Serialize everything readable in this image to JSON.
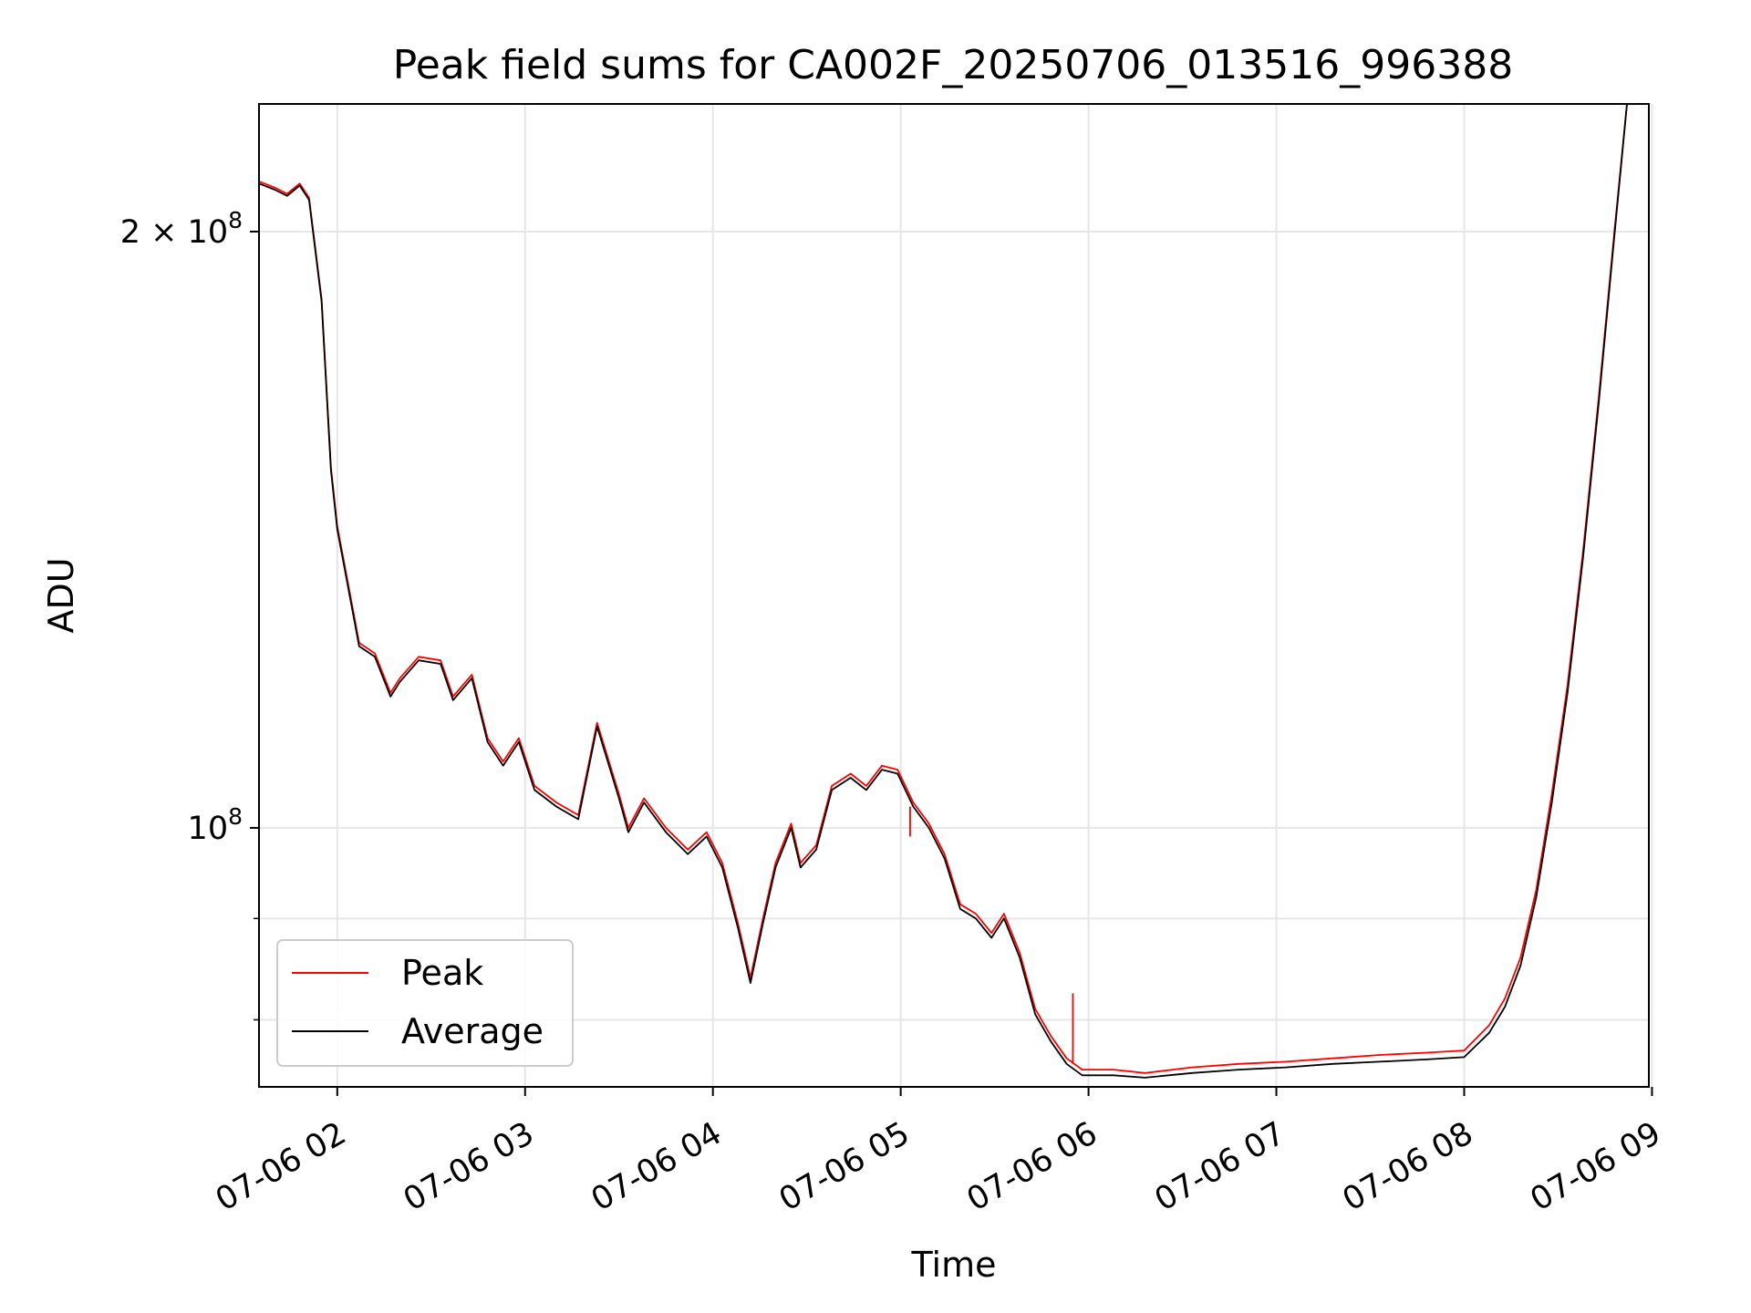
{
  "chart_data": {
    "type": "line",
    "title": "Peak field sums for CA002F_20250706_013516_996388",
    "xlabel": "Time",
    "ylabel": "ADU",
    "y_scale": "log",
    "x_range": [
      "07-06 01:35",
      "07-06 08:59"
    ],
    "ylim": [
      74000000,
      232000000
    ],
    "grid": true,
    "legend_position": "lower-left",
    "x_ticks": [
      "07-06 02",
      "07-06 03",
      "07-06 04",
      "07-06 05",
      "07-06 06",
      "07-06 07",
      "07-06 08",
      "07-06 09"
    ],
    "y_ticks": [
      {
        "value": 200000000,
        "label_base": "2 × 10",
        "label_exp": "8"
      },
      {
        "value": 100000000,
        "label_base": "10",
        "label_exp": "8"
      }
    ],
    "y_minor_ticks": [
      80000000,
      90000000
    ],
    "series": [
      {
        "name": "Peak",
        "color": "#ff0000",
        "points": [
          [
            "07-06 01:35",
            212000000
          ],
          [
            "07-06 01:40",
            210500000
          ],
          [
            "07-06 01:44",
            209000000
          ],
          [
            "07-06 01:48",
            211500000
          ],
          [
            "07-06 01:51",
            208000000
          ],
          [
            "07-06 01:55",
            185000000
          ],
          [
            "07-06 01:58",
            152000000
          ],
          [
            "07-06 02:00",
            142000000
          ],
          [
            "07-06 02:03",
            134000000
          ],
          [
            "07-06 02:07",
            124000000
          ],
          [
            "07-06 02:12",
            122500000
          ],
          [
            "07-06 02:17",
            117000000
          ],
          [
            "07-06 02:20",
            119000000
          ],
          [
            "07-06 02:26",
            122000000
          ],
          [
            "07-06 02:33",
            121500000
          ],
          [
            "07-06 02:37",
            116500000
          ],
          [
            "07-06 02:43",
            119500000
          ],
          [
            "07-06 02:48",
            111000000
          ],
          [
            "07-06 02:53",
            108000000
          ],
          [
            "07-06 02:58",
            111000000
          ],
          [
            "07-06 03:03",
            105000000
          ],
          [
            "07-06 03:10",
            103000000
          ],
          [
            "07-06 03:17",
            101500000
          ],
          [
            "07-06 03:23",
            113000000
          ],
          [
            "07-06 03:30",
            104000000
          ],
          [
            "07-06 03:33",
            100000000
          ],
          [
            "07-06 03:38",
            103500000
          ],
          [
            "07-06 03:45",
            100000000
          ],
          [
            "07-06 03:52",
            97500000
          ],
          [
            "07-06 03:58",
            99500000
          ],
          [
            "07-06 04:03",
            96000000
          ],
          [
            "07-06 04:08",
            89500000
          ],
          [
            "07-06 04:12",
            84000000
          ],
          [
            "07-06 04:16",
            90000000
          ],
          [
            "07-06 04:20",
            96000000
          ],
          [
            "07-06 04:25",
            100500000
          ],
          [
            "07-06 04:28",
            96000000
          ],
          [
            "07-06 04:33",
            98000000
          ],
          [
            "07-06 04:38",
            105000000
          ],
          [
            "07-06 04:44",
            106500000
          ],
          [
            "07-06 04:49",
            105000000
          ],
          [
            "07-06 04:54",
            107500000
          ],
          [
            "07-06 04:59",
            107000000
          ],
          [
            "07-06 05:04",
            103000000
          ],
          [
            "07-06 05:09",
            100500000
          ],
          [
            "07-06 05:14",
            97000000
          ],
          [
            "07-06 05:19",
            91500000
          ],
          [
            "07-06 05:24",
            90500000
          ],
          [
            "07-06 05:29",
            88500000
          ],
          [
            "07-06 05:33",
            90500000
          ],
          [
            "07-06 05:38",
            86500000
          ],
          [
            "07-06 05:43",
            81000000
          ],
          [
            "07-06 05:48",
            78500000
          ],
          [
            "07-06 05:53",
            76500000
          ],
          [
            "07-06 05:58",
            75500000
          ],
          [
            "07-06 06:08",
            75500000
          ],
          [
            "07-06 06:18",
            75200000
          ],
          [
            "07-06 06:33",
            75700000
          ],
          [
            "07-06 06:48",
            76000000
          ],
          [
            "07-06 07:03",
            76200000
          ],
          [
            "07-06 07:18",
            76500000
          ],
          [
            "07-06 07:33",
            76800000
          ],
          [
            "07-06 07:48",
            77000000
          ],
          [
            "07-06 08:00",
            77200000
          ],
          [
            "07-06 08:08",
            79500000
          ],
          [
            "07-06 08:13",
            82000000
          ],
          [
            "07-06 08:18",
            86000000
          ],
          [
            "07-06 08:23",
            93000000
          ],
          [
            "07-06 08:28",
            104000000
          ],
          [
            "07-06 08:33",
            118000000
          ],
          [
            "07-06 08:38",
            138000000
          ],
          [
            "07-06 08:43",
            165000000
          ],
          [
            "07-06 08:48",
            200000000
          ],
          [
            "07-06 08:52",
            232000000
          ],
          [
            "07-06 08:59",
            232000000
          ]
        ]
      },
      {
        "name": "Average",
        "color": "#000000",
        "points": [
          [
            "07-06 01:35",
            211500000
          ],
          [
            "07-06 01:40",
            210000000
          ],
          [
            "07-06 01:44",
            208500000
          ],
          [
            "07-06 01:48",
            211000000
          ],
          [
            "07-06 01:51",
            207500000
          ],
          [
            "07-06 01:55",
            184500000
          ],
          [
            "07-06 01:58",
            151500000
          ],
          [
            "07-06 02:00",
            141500000
          ],
          [
            "07-06 02:03",
            133500000
          ],
          [
            "07-06 02:07",
            123500000
          ],
          [
            "07-06 02:12",
            122000000
          ],
          [
            "07-06 02:17",
            116500000
          ],
          [
            "07-06 02:20",
            118500000
          ],
          [
            "07-06 02:26",
            121500000
          ],
          [
            "07-06 02:33",
            121000000
          ],
          [
            "07-06 02:37",
            116000000
          ],
          [
            "07-06 02:43",
            119000000
          ],
          [
            "07-06 02:48",
            110500000
          ],
          [
            "07-06 02:53",
            107500000
          ],
          [
            "07-06 02:58",
            110500000
          ],
          [
            "07-06 03:03",
            104500000
          ],
          [
            "07-06 03:10",
            102500000
          ],
          [
            "07-06 03:17",
            101000000
          ],
          [
            "07-06 03:23",
            112500000
          ],
          [
            "07-06 03:30",
            103500000
          ],
          [
            "07-06 03:33",
            99500000
          ],
          [
            "07-06 03:38",
            103000000
          ],
          [
            "07-06 03:45",
            99500000
          ],
          [
            "07-06 03:52",
            97000000
          ],
          [
            "07-06 03:58",
            99000000
          ],
          [
            "07-06 04:03",
            95500000
          ],
          [
            "07-06 04:08",
            89000000
          ],
          [
            "07-06 04:12",
            83500000
          ],
          [
            "07-06 04:16",
            89500000
          ],
          [
            "07-06 04:20",
            95500000
          ],
          [
            "07-06 04:25",
            100000000
          ],
          [
            "07-06 04:28",
            95500000
          ],
          [
            "07-06 04:33",
            97500000
          ],
          [
            "07-06 04:38",
            104500000
          ],
          [
            "07-06 04:44",
            106000000
          ],
          [
            "07-06 04:49",
            104500000
          ],
          [
            "07-06 04:54",
            107000000
          ],
          [
            "07-06 04:59",
            106500000
          ],
          [
            "07-06 05:04",
            102500000
          ],
          [
            "07-06 05:09",
            100000000
          ],
          [
            "07-06 05:14",
            96500000
          ],
          [
            "07-06 05:19",
            91000000
          ],
          [
            "07-06 05:24",
            90000000
          ],
          [
            "07-06 05:29",
            88000000
          ],
          [
            "07-06 05:33",
            90000000
          ],
          [
            "07-06 05:38",
            86000000
          ],
          [
            "07-06 05:43",
            80500000
          ],
          [
            "07-06 05:48",
            78000000
          ],
          [
            "07-06 05:53",
            76000000
          ],
          [
            "07-06 05:58",
            75000000
          ],
          [
            "07-06 06:08",
            75000000
          ],
          [
            "07-06 06:18",
            74800000
          ],
          [
            "07-06 06:33",
            75200000
          ],
          [
            "07-06 06:48",
            75500000
          ],
          [
            "07-06 07:03",
            75700000
          ],
          [
            "07-06 07:18",
            76000000
          ],
          [
            "07-06 07:33",
            76200000
          ],
          [
            "07-06 07:48",
            76400000
          ],
          [
            "07-06 08:00",
            76600000
          ],
          [
            "07-06 08:08",
            78800000
          ],
          [
            "07-06 08:13",
            81200000
          ],
          [
            "07-06 08:18",
            85200000
          ],
          [
            "07-06 08:23",
            92200000
          ],
          [
            "07-06 08:28",
            103000000
          ],
          [
            "07-06 08:33",
            117000000
          ],
          [
            "07-06 08:38",
            137000000
          ],
          [
            "07-06 08:43",
            164000000
          ],
          [
            "07-06 08:48",
            199000000
          ],
          [
            "07-06 08:52",
            232000000
          ],
          [
            "07-06 08:59",
            232000000
          ]
        ]
      }
    ],
    "annotations": [
      {
        "series": "Peak",
        "type": "spike",
        "x": "07-06 05:55",
        "y_low": 76000000,
        "y_high": 82500000
      },
      {
        "series": "Peak",
        "type": "spike",
        "x": "07-06 05:03",
        "y_low": 99000000,
        "y_high": 102500000
      }
    ]
  }
}
